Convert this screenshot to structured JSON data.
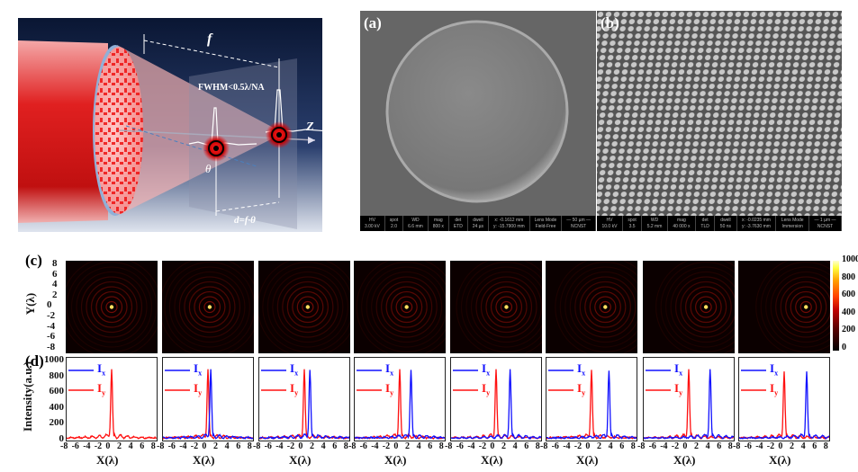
{
  "diagram": {
    "focal_label": "f",
    "fwhm_label": "FWHM<0.5λ/NA",
    "theta_label": "θ",
    "d_label": "d=f·θ",
    "z_label": "Z"
  },
  "sem": {
    "a": {
      "label": "(a)",
      "info": [
        [
          "HV",
          "3.00 kV"
        ],
        [
          "spot",
          "2.0"
        ],
        [
          "WD",
          "6.6 mm"
        ],
        [
          "mag",
          "800 x"
        ],
        [
          "det",
          "ETD"
        ],
        [
          "dwell",
          "24 µs"
        ],
        [
          "x: -0.1612 mm",
          "y: -15.7900 mm"
        ],
        [
          "Lens Mode",
          "Field-Free"
        ],
        [
          "— 50 µm —",
          "NCNST"
        ]
      ]
    },
    "b": {
      "label": "(b)",
      "info": [
        [
          "HV",
          "10.0 kV"
        ],
        [
          "spot",
          "3.5"
        ],
        [
          "WD",
          "5.2 mm"
        ],
        [
          "mag",
          "40 000 x"
        ],
        [
          "det",
          "TLD"
        ],
        [
          "dwell",
          "50 ns"
        ],
        [
          "x: -0.0235 mm",
          "y: -3.7630 mm"
        ],
        [
          "Lens Mode",
          "Immersion"
        ],
        [
          "— 1 µm —",
          "NCNST"
        ]
      ]
    }
  },
  "chart_data": [
    {
      "type": "heatmap",
      "panel_label": "(c)",
      "ylabel": "Y(λ)",
      "yticks": [
        "8",
        "6",
        "4",
        "2",
        "0",
        "-2",
        "-4",
        "-6",
        "-8"
      ],
      "ylim": [
        -8,
        8
      ],
      "colorbar": {
        "ticks": [
          "1000",
          "800",
          "600",
          "400",
          "200",
          "0"
        ],
        "range": [
          0,
          1000
        ]
      },
      "panels": 8,
      "spot_x": [
        0,
        0.3,
        0.6,
        1.2,
        1.8,
        2.4,
        3.0,
        3.8
      ]
    },
    {
      "type": "line",
      "panel_label": "(d)",
      "ylabel": "Intensity(a.u.)",
      "xlabel": "X(λ)",
      "xticks": [
        "-8",
        "-6",
        "-4",
        "-2",
        "0",
        "2",
        "4",
        "6",
        "8"
      ],
      "yticks": [
        "1000",
        "800",
        "600",
        "400",
        "200",
        "0"
      ],
      "xlim": [
        -8,
        8
      ],
      "ylim": [
        0,
        1000
      ],
      "legend": {
        "ix": "I",
        "ix_sub": "x",
        "iy": "I",
        "iy_sub": "y"
      },
      "colors": {
        "ix": "#1010ff",
        "iy": "#ff1010"
      },
      "series": [
        {
          "name": "Ix",
          "peak_x": [
            0,
            0.5,
            1.0,
            2.0,
            2.5,
            3.1,
            3.8,
            4.0
          ],
          "peak_value": [
            880,
            880,
            870,
            870,
            880,
            860,
            880,
            850
          ]
        },
        {
          "name": "Iy",
          "peak_x": [
            0,
            0,
            0,
            0,
            0,
            0,
            0,
            0
          ],
          "peak_value": [
            880,
            880,
            880,
            880,
            880,
            870,
            880,
            850
          ]
        }
      ]
    }
  ]
}
